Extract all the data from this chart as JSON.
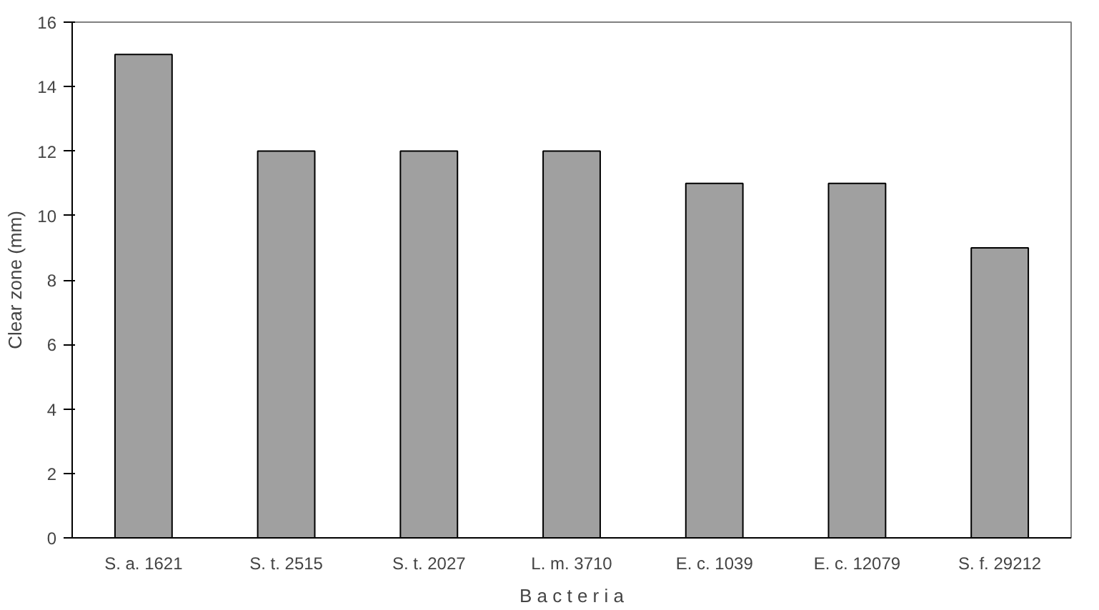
{
  "chart_data": {
    "type": "bar",
    "xlabel": "B a c t e r i a",
    "ylabel": "Clear zone (mm)",
    "categories": [
      "S. a. 1621",
      "S. t. 2515",
      "S. t. 2027",
      "L. m. 3710",
      "E. c. 1039",
      "E. c. 12079",
      "S. f. 29212"
    ],
    "values": [
      15,
      12,
      12,
      12,
      11,
      11,
      9
    ],
    "color": "#a0a0a0",
    "ylim": [
      0,
      16
    ],
    "yticks": [
      0,
      2,
      4,
      6,
      8,
      10,
      12,
      14,
      16
    ],
    "grid": false
  }
}
